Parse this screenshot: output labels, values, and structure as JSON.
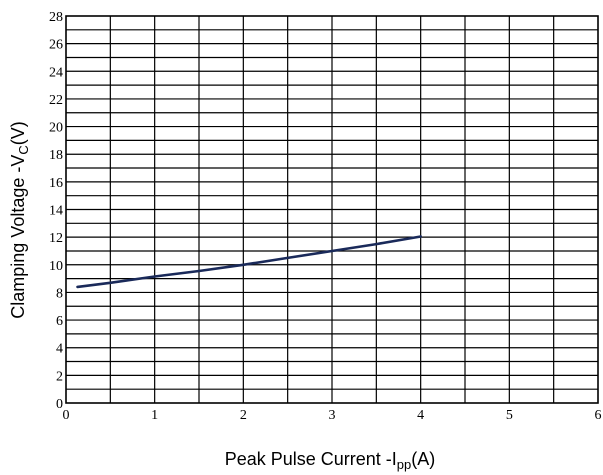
{
  "chart_data": {
    "type": "line",
    "title": "",
    "xlabel": {
      "main": "Peak Pulse Current   -I",
      "sub": "pp",
      "unit": "(A)"
    },
    "ylabel": {
      "main": "Clamping Voltage -V",
      "sub": "C",
      "unit": "(V)"
    },
    "xlim": [
      0,
      6
    ],
    "ylim": [
      0,
      28
    ],
    "x_ticks": [
      0,
      1,
      2,
      3,
      4,
      5,
      6
    ],
    "y_ticks": [
      0,
      2,
      4,
      6,
      8,
      10,
      12,
      14,
      16,
      18,
      20,
      22,
      24,
      26,
      28
    ],
    "x_grid_step": 0.5,
    "y_grid_step": 1,
    "grid": true,
    "legend": "none",
    "series_color": "#1a2a5a",
    "series": [
      {
        "x": [
          0.13,
          0.5,
          1,
          1.5,
          2,
          2.5,
          3,
          3.5,
          4
        ],
        "y": [
          8.4,
          8.7,
          9.15,
          9.55,
          10.0,
          10.5,
          11.0,
          11.5,
          12.05
        ]
      }
    ]
  }
}
